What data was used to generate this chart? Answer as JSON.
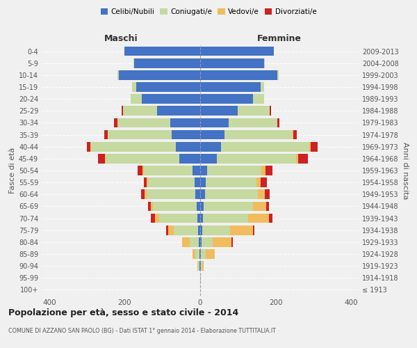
{
  "age_groups": [
    "100+",
    "95-99",
    "90-94",
    "85-89",
    "80-84",
    "75-79",
    "70-74",
    "65-69",
    "60-64",
    "55-59",
    "50-54",
    "45-49",
    "40-44",
    "35-39",
    "30-34",
    "25-29",
    "20-24",
    "15-19",
    "10-14",
    "5-9",
    "0-4"
  ],
  "birth_years": [
    "≤ 1913",
    "1914-1918",
    "1919-1923",
    "1924-1928",
    "1929-1933",
    "1934-1938",
    "1939-1943",
    "1944-1948",
    "1949-1953",
    "1954-1958",
    "1959-1963",
    "1964-1968",
    "1969-1973",
    "1974-1978",
    "1979-1983",
    "1984-1988",
    "1989-1993",
    "1994-1998",
    "1999-2003",
    "2004-2008",
    "2009-2013"
  ],
  "male_celibi": [
    0,
    0,
    2,
    2,
    3,
    5,
    8,
    10,
    12,
    14,
    20,
    55,
    65,
    75,
    80,
    115,
    155,
    170,
    215,
    175,
    200
  ],
  "male_coniugati": [
    0,
    0,
    4,
    10,
    25,
    65,
    100,
    115,
    130,
    125,
    130,
    195,
    225,
    170,
    140,
    90,
    30,
    10,
    5,
    2,
    1
  ],
  "male_vedovi": [
    0,
    0,
    2,
    8,
    20,
    15,
    12,
    5,
    5,
    3,
    3,
    2,
    1,
    0,
    0,
    0,
    0,
    0,
    0,
    0,
    0
  ],
  "male_divorziati": [
    0,
    0,
    0,
    0,
    0,
    5,
    10,
    8,
    10,
    8,
    12,
    18,
    10,
    10,
    8,
    3,
    0,
    0,
    0,
    0,
    0
  ],
  "female_celibi": [
    0,
    0,
    2,
    2,
    3,
    5,
    8,
    10,
    12,
    14,
    18,
    45,
    55,
    65,
    75,
    100,
    140,
    160,
    205,
    170,
    195
  ],
  "female_coniugati": [
    0,
    0,
    3,
    12,
    30,
    75,
    120,
    130,
    140,
    135,
    145,
    210,
    235,
    180,
    130,
    85,
    30,
    10,
    4,
    2,
    1
  ],
  "female_vedovi": [
    0,
    2,
    5,
    25,
    50,
    60,
    55,
    35,
    20,
    12,
    10,
    5,
    3,
    1,
    0,
    0,
    0,
    0,
    0,
    0,
    0
  ],
  "female_divorziati": [
    0,
    0,
    0,
    0,
    3,
    3,
    8,
    8,
    12,
    15,
    18,
    25,
    18,
    10,
    5,
    2,
    0,
    0,
    0,
    0,
    0
  ],
  "color_celibi": "#4472c4",
  "color_coniugati": "#c5d9a0",
  "color_vedovi": "#f0bc5e",
  "color_divorziati": "#cc2222",
  "title": "Popolazione per età, sesso e stato civile - 2014",
  "subtitle": "COMUNE DI AZZANO SAN PAOLO (BG) - Dati ISTAT 1° gennaio 2014 - Elaborazione TUTTITALIA.IT",
  "xlabel_left": "Maschi",
  "xlabel_right": "Femmine",
  "ylabel_left": "Fasce di età",
  "ylabel_right": "Anni di nascita",
  "xlim": 420,
  "background_color": "#f0f0f0"
}
